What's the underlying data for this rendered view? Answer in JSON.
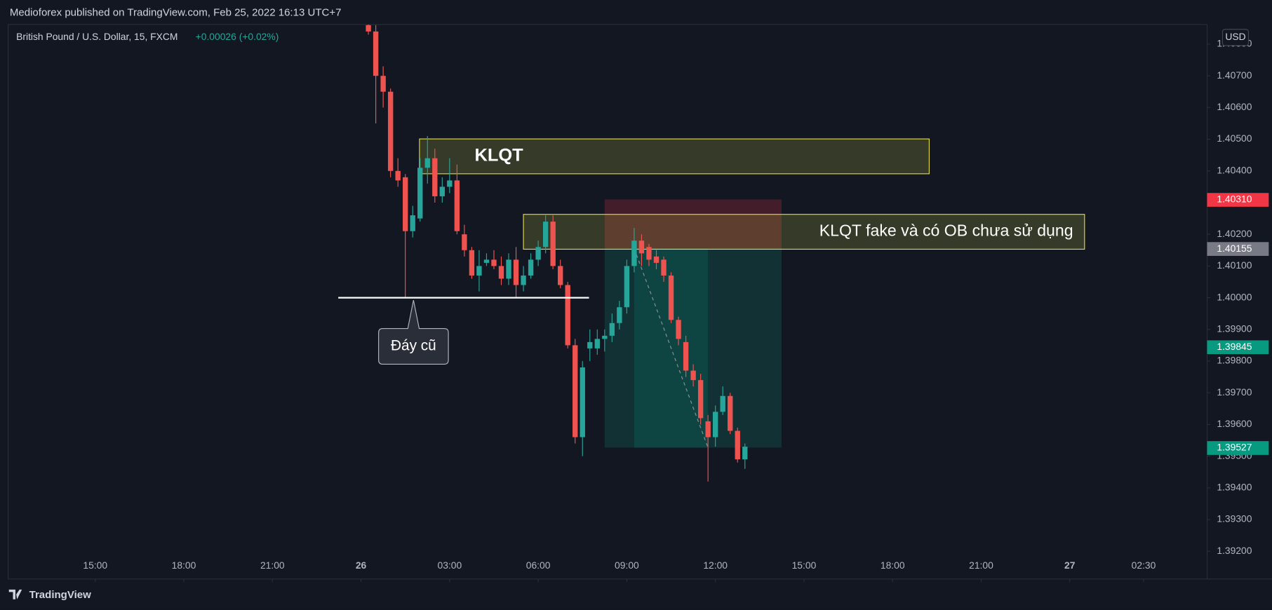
{
  "chart_data": {
    "type": "candlestick",
    "header": "Medioforex published on TradingView.com, Feb 25, 2022 16:13 UTC+7",
    "symbol": "British Pound / U.S. Dollar, 15, FXCM",
    "change": "+0.00026 (+0.02%)",
    "currency": "USD",
    "brand": "TradingView",
    "up_color": "#26a69a",
    "down_color": "#ef5350",
    "grid": false,
    "x": [
      24.25,
      24.5,
      24.75,
      25,
      25.25,
      25.5,
      25.75,
      26,
      26.25,
      26.5,
      26.75,
      27,
      27.25,
      27.5,
      27.75,
      28,
      28.25,
      28.5,
      28.75,
      29,
      29.25,
      29.5,
      29.75,
      30,
      30.25,
      30.5,
      30.75,
      31,
      31.25,
      31.5,
      31.75,
      32,
      32.25,
      32.5,
      32.75,
      33,
      33.25,
      33.5,
      33.75,
      34,
      34.25,
      34.5,
      34.75,
      35,
      35.25,
      35.5,
      35.75,
      36,
      36.25,
      36.5,
      36.75,
      37
    ],
    "open": [
      1.4086,
      1.4084,
      1.407,
      1.4065,
      1.404,
      1.4038,
      1.4021,
      1.4025,
      1.4041,
      1.4044,
      1.4032,
      1.4035,
      1.4037,
      1.402,
      1.4015,
      1.4007,
      1.4011,
      1.4012,
      1.401,
      1.4006,
      1.4012,
      1.4004,
      1.4007,
      1.4012,
      1.4016,
      1.4024,
      1.401,
      1.4004,
      1.3985,
      1.3956,
      1.3984,
      1.3984,
      1.3987,
      1.3988,
      1.3992,
      1.3997,
      1.401,
      1.4018,
      1.4016,
      1.4013,
      1.4012,
      1.4007,
      1.3993,
      1.3986,
      1.3977,
      1.3974,
      1.3961,
      1.3956,
      1.3964,
      1.3969,
      1.3958,
      1.3949
    ],
    "high": [
      1.4087,
      1.4086,
      1.4073,
      1.4066,
      1.4044,
      1.4039,
      1.4029,
      1.4044,
      1.4051,
      1.4047,
      1.4038,
      1.4044,
      1.4042,
      1.4023,
      1.4016,
      1.4015,
      1.4014,
      1.4015,
      1.4013,
      1.4014,
      1.4016,
      1.401,
      1.4014,
      1.4018,
      1.4026,
      1.4026,
      1.4012,
      1.4005,
      1.3987,
      1.398,
      1.399,
      1.399,
      1.399,
      1.3995,
      1.3999,
      1.4012,
      1.4022,
      1.402,
      1.4017,
      1.4015,
      1.4013,
      1.4008,
      1.3994,
      1.3988,
      1.3979,
      1.3976,
      1.3963,
      1.3966,
      1.3972,
      1.397,
      1.3959,
      1.3954
    ],
    "low": [
      1.4083,
      1.4055,
      1.406,
      1.4038,
      1.4035,
      1.4,
      1.4019,
      1.4024,
      1.4036,
      1.403,
      1.403,
      1.4033,
      1.402,
      1.4013,
      1.4006,
      1.4002,
      1.401,
      1.4009,
      1.4004,
      1.4004,
      1.4,
      1.4002,
      1.4006,
      1.401,
      1.4014,
      1.4009,
      1.4003,
      1.3984,
      1.3954,
      1.395,
      1.398,
      1.3982,
      1.3983,
      1.3986,
      1.399,
      1.3995,
      1.4008,
      1.401,
      1.401,
      1.4009,
      1.4005,
      1.3992,
      1.3985,
      1.3975,
      1.3972,
      1.396,
      1.3942,
      1.3953,
      1.3963,
      1.3957,
      1.3948,
      1.3946
    ],
    "close": [
      1.4084,
      1.407,
      1.4065,
      1.404,
      1.4037,
      1.4021,
      1.4026,
      1.4041,
      1.4044,
      1.4032,
      1.4035,
      1.4037,
      1.4021,
      1.4015,
      1.4007,
      1.401,
      1.4012,
      1.401,
      1.4006,
      1.4012,
      1.4004,
      1.4007,
      1.4012,
      1.4016,
      1.4024,
      1.401,
      1.4004,
      1.3985,
      1.3956,
      1.3978,
      1.3986,
      1.3987,
      1.3988,
      1.3992,
      1.3997,
      1.401,
      1.4018,
      1.4014,
      1.4012,
      1.4011,
      1.4007,
      1.3993,
      1.3987,
      1.3977,
      1.3974,
      1.3962,
      1.3956,
      1.3964,
      1.3969,
      1.3958,
      1.3949,
      1.3953
    ],
    "xlim": [
      12.05,
      52.65
    ],
    "xticks": [
      {
        "value": 15,
        "label": "15:00"
      },
      {
        "value": 18,
        "label": "18:00"
      },
      {
        "value": 21,
        "label": "21:00"
      },
      {
        "value": 24,
        "label": "26"
      },
      {
        "value": 27,
        "label": "03:00"
      },
      {
        "value": 30,
        "label": "06:00"
      },
      {
        "value": 33,
        "label": "09:00"
      },
      {
        "value": 36,
        "label": "12:00"
      },
      {
        "value": 39,
        "label": "15:00"
      },
      {
        "value": 42,
        "label": "18:00"
      },
      {
        "value": 45,
        "label": "21:00"
      },
      {
        "value": 48,
        "label": "27"
      },
      {
        "value": 50.5,
        "label": "02:30"
      }
    ],
    "ylim": [
      1.39115,
      1.40862
    ],
    "yticks": [
      {
        "value": 1.392,
        "label": "1.39200"
      },
      {
        "value": 1.393,
        "label": "1.39300"
      },
      {
        "value": 1.394,
        "label": "1.39400"
      },
      {
        "value": 1.395,
        "label": "1.39500"
      },
      {
        "value": 1.396,
        "label": "1.39600"
      },
      {
        "value": 1.397,
        "label": "1.39700"
      },
      {
        "value": 1.398,
        "label": "1.39800"
      },
      {
        "value": 1.399,
        "label": "1.39900"
      },
      {
        "value": 1.4,
        "label": "1.40000"
      },
      {
        "value": 1.401,
        "label": "1.40100"
      },
      {
        "value": 1.402,
        "label": "1.40200"
      },
      {
        "value": 1.403,
        "label": "1.40300"
      },
      {
        "value": 1.404,
        "label": "1.40400"
      },
      {
        "value": 1.405,
        "label": "1.40500"
      },
      {
        "value": 1.406,
        "label": "1.40600"
      },
      {
        "value": 1.407,
        "label": "1.40700"
      },
      {
        "value": 1.408,
        "label": "1.40800"
      }
    ],
    "price_labels": [
      {
        "value": 1.4031,
        "label": "1.40310",
        "color": "#f23645"
      },
      {
        "value": 1.40155,
        "label": "1.40155",
        "color": "#787b86"
      },
      {
        "value": 1.39845,
        "label": "1.39845",
        "color": "#089981"
      },
      {
        "value": 1.39527,
        "label": "1.39527",
        "color": "#089981"
      }
    ],
    "boxes": [
      {
        "text": "KLQT",
        "x": [
          25.98,
          43.24
        ],
        "y": [
          1.40391,
          1.40501
        ]
      },
      {
        "text": "KLQT fake và có OB chưa sử dụng",
        "x": [
          29.5,
          48.5
        ],
        "y": [
          1.40153,
          1.40263
        ]
      }
    ],
    "level": {
      "value": 1.4,
      "x": [
        23.23,
        31.72
      ],
      "label": "Đáy cũ"
    },
    "position": {
      "x": [
        32.25,
        38.24
      ],
      "stop": 1.4031,
      "entry": 1.40155,
      "target": 1.39527,
      "trade_x": [
        33.25,
        35.75
      ]
    }
  }
}
